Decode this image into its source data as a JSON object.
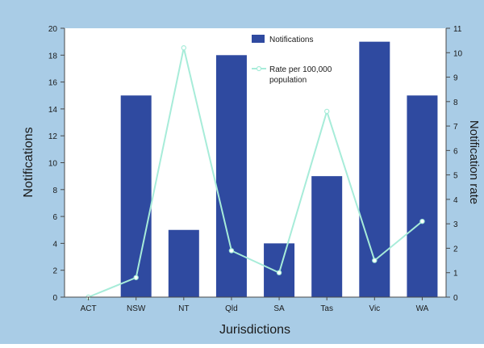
{
  "chart_data": {
    "type": "bar",
    "title": "",
    "xlabel": "Jurisdictions",
    "ylabel": "Notifications",
    "ylabel_right": "Notification rate",
    "categories": [
      "ACT",
      "NSW",
      "NT",
      "Qld",
      "SA",
      "Tas",
      "Vic",
      "WA"
    ],
    "ylim": [
      0,
      20
    ],
    "ylim_right": [
      0,
      11
    ],
    "yticks": [
      "0",
      "2",
      "4",
      "6",
      "8",
      "10",
      "12",
      "14",
      "16",
      "18",
      "20"
    ],
    "yticks_right": [
      "0",
      "1",
      "2",
      "3",
      "4",
      "5",
      "6",
      "7",
      "8",
      "9",
      "10",
      "11"
    ],
    "grid": false,
    "legend_position": "top-center",
    "series": [
      {
        "name": "Notifications",
        "type": "bar",
        "axis": "left",
        "color": "#2f4aa0",
        "values": [
          0,
          15,
          5,
          18,
          4,
          9,
          19,
          15
        ]
      },
      {
        "name": "Rate per 100,000 population",
        "type": "line",
        "axis": "right",
        "color": "#a7ecd9",
        "values": [
          0,
          0.8,
          10.2,
          1.9,
          1.0,
          7.6,
          1.5,
          3.1
        ]
      }
    ]
  }
}
